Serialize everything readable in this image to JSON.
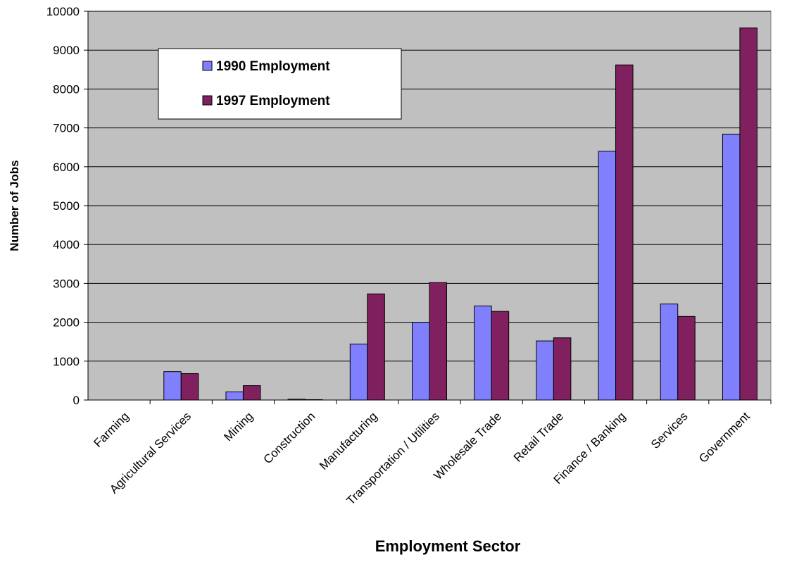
{
  "chart_data": {
    "type": "bar",
    "title": "",
    "xlabel": "Employment Sector",
    "ylabel": "Number of Jobs",
    "ylim": [
      0,
      10000
    ],
    "yticks": [
      0,
      1000,
      2000,
      3000,
      4000,
      5000,
      6000,
      7000,
      8000,
      9000,
      10000
    ],
    "grid": true,
    "legend_position": "top-left",
    "categories": [
      "Farming",
      "Agricultural Services",
      "Mining",
      "Construction",
      "Manufacturing",
      "Transportation / Utilities",
      "Wholesale Trade",
      "Retail Trade",
      "Finance / Banking",
      "Services",
      "Government"
    ],
    "series": [
      {
        "name": "1990 Employment",
        "color": "#8080ff",
        "values": [
          0,
          730,
          210,
          20,
          1440,
          2000,
          2420,
          1520,
          6400,
          2470,
          6840
        ]
      },
      {
        "name": "1997 Employment",
        "color": "#80205e",
        "values": [
          0,
          680,
          370,
          10,
          2730,
          3020,
          2280,
          1600,
          8620,
          2150,
          9570
        ]
      }
    ]
  }
}
